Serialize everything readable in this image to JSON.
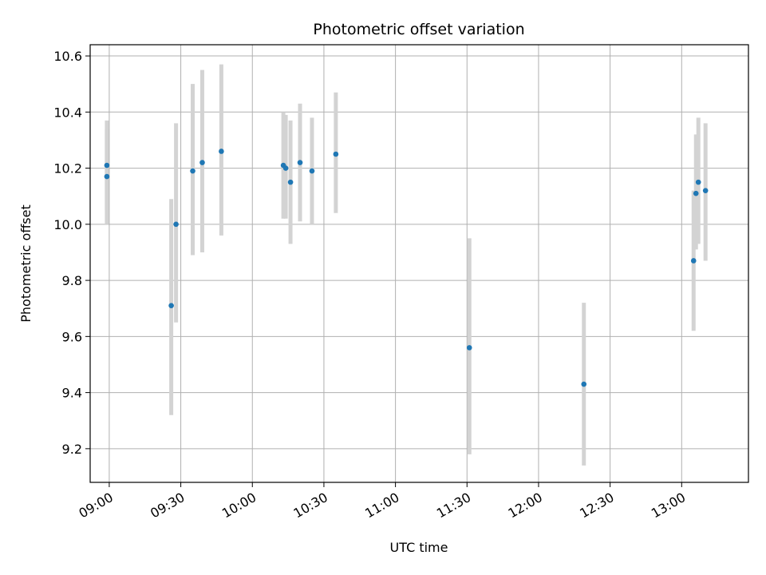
{
  "chart_data": {
    "type": "scatter",
    "title": "Photometric offset variation",
    "xlabel": "UTC time",
    "ylabel": "Photometric offset",
    "grid": true,
    "xlim": [
      "08:52",
      "13:28"
    ],
    "ylim": [
      9.08,
      10.64
    ],
    "x_ticks": [
      "09:00",
      "09:30",
      "10:00",
      "10:30",
      "11:00",
      "11:30",
      "12:00",
      "12:30",
      "13:00"
    ],
    "y_ticks": [
      "9.2",
      "9.4",
      "9.6",
      "9.8",
      "10.0",
      "10.2",
      "10.4",
      "10.6"
    ],
    "points": [
      {
        "x": "08:59",
        "y": 10.21,
        "err_low": 10.05,
        "err_high": 10.37
      },
      {
        "x": "08:59",
        "y": 10.17,
        "err_low": 10.0,
        "err_high": 10.34
      },
      {
        "x": "09:26",
        "y": 9.71,
        "err_low": 9.32,
        "err_high": 10.09
      },
      {
        "x": "09:28",
        "y": 10.0,
        "err_low": 9.65,
        "err_high": 10.36
      },
      {
        "x": "09:35",
        "y": 10.19,
        "err_low": 9.89,
        "err_high": 10.5
      },
      {
        "x": "09:39",
        "y": 10.22,
        "err_low": 9.9,
        "err_high": 10.55
      },
      {
        "x": "09:47",
        "y": 10.26,
        "err_low": 9.96,
        "err_high": 10.57
      },
      {
        "x": "10:13",
        "y": 10.21,
        "err_low": 10.02,
        "err_high": 10.4
      },
      {
        "x": "10:14",
        "y": 10.2,
        "err_low": 10.02,
        "err_high": 10.39
      },
      {
        "x": "10:16",
        "y": 10.15,
        "err_low": 9.93,
        "err_high": 10.37
      },
      {
        "x": "10:20",
        "y": 10.22,
        "err_low": 10.01,
        "err_high": 10.43
      },
      {
        "x": "10:25",
        "y": 10.19,
        "err_low": 10.0,
        "err_high": 10.38
      },
      {
        "x": "10:35",
        "y": 10.25,
        "err_low": 10.04,
        "err_high": 10.47
      },
      {
        "x": "11:31",
        "y": 9.56,
        "err_low": 9.18,
        "err_high": 9.95
      },
      {
        "x": "12:19",
        "y": 9.43,
        "err_low": 9.14,
        "err_high": 9.72
      },
      {
        "x": "13:05",
        "y": 9.87,
        "err_low": 9.62,
        "err_high": 10.12
      },
      {
        "x": "13:06",
        "y": 10.11,
        "err_low": 9.91,
        "err_high": 10.32
      },
      {
        "x": "13:07",
        "y": 10.15,
        "err_low": 9.93,
        "err_high": 10.38
      },
      {
        "x": "13:10",
        "y": 10.12,
        "err_low": 9.87,
        "err_high": 10.36
      }
    ],
    "colors": {
      "point": "#1f77b4",
      "errorbar": "#d3d3d3",
      "grid": "#b0b0b0",
      "axis": "#000000"
    }
  }
}
